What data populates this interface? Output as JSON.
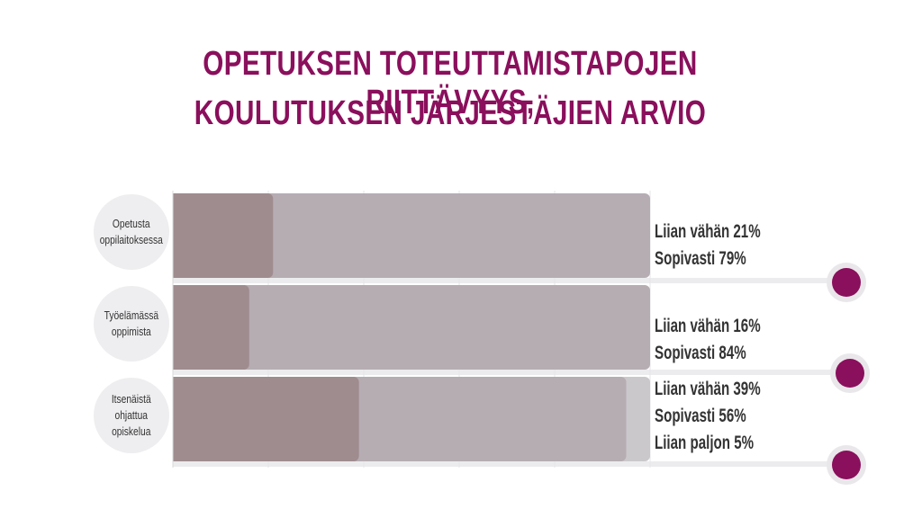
{
  "title_lines": [
    "OPETUKSEN TOTEUTTAMISTAPOJEN RIITTÄVYYS,",
    "KOULUTUKSEN JÄRJESTÄJIEN ARVIO"
  ],
  "colors": {
    "title": "#8a0f5c",
    "liian_vahan": "#9f8c8f",
    "sopivasti": "#b6adb3",
    "liian_paljon": "#cbc8cc",
    "dot": "#8a0f5c"
  },
  "chart_data": {
    "type": "bar",
    "stacked": true,
    "orientation": "horizontal",
    "categories": [
      [
        "Opetusta",
        "oppilaitoksessa"
      ],
      [
        "Työelämässä",
        "oppimista"
      ],
      [
        "Itsenäistä",
        "ohjattua",
        "opiskelua"
      ]
    ],
    "series": [
      {
        "name": "Liian vähän",
        "values": [
          21,
          16,
          39
        ]
      },
      {
        "name": "Sopivasti",
        "values": [
          79,
          84,
          56
        ]
      },
      {
        "name": "Liian paljon",
        "values": [
          0,
          0,
          5
        ]
      }
    ],
    "legend_lines": [
      [
        "Liian vähän 21%",
        "Sopivasti 79%"
      ],
      [
        "Liian vähän 16%",
        "Sopivasti 84%"
      ],
      [
        "Liian vähän 39%",
        "Sopivasti 56%",
        "Liian paljon 5%"
      ]
    ],
    "xlim": [
      0,
      100
    ],
    "grid": "vertical"
  }
}
